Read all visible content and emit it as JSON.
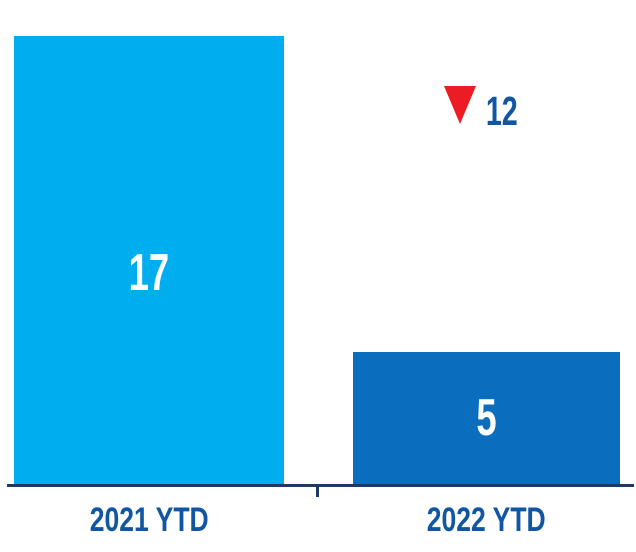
{
  "chart_data": {
    "type": "bar",
    "categories": [
      "2021 YTD",
      "2022 YTD"
    ],
    "values": [
      17,
      5
    ],
    "ylim": [
      0,
      17
    ],
    "grid": false,
    "legend": false,
    "bar_colors": [
      "#00AEEF",
      "#0B6DBE"
    ],
    "value_label_color": "#FFFFFF",
    "category_label_color": "#1056A2",
    "axis_line_color": "#1F3864",
    "change_indicator": {
      "value": 12,
      "direction": "down",
      "icon": "triangle-down-icon",
      "triangle_color": "#EC1C24",
      "text_color": "#1056A2"
    }
  }
}
